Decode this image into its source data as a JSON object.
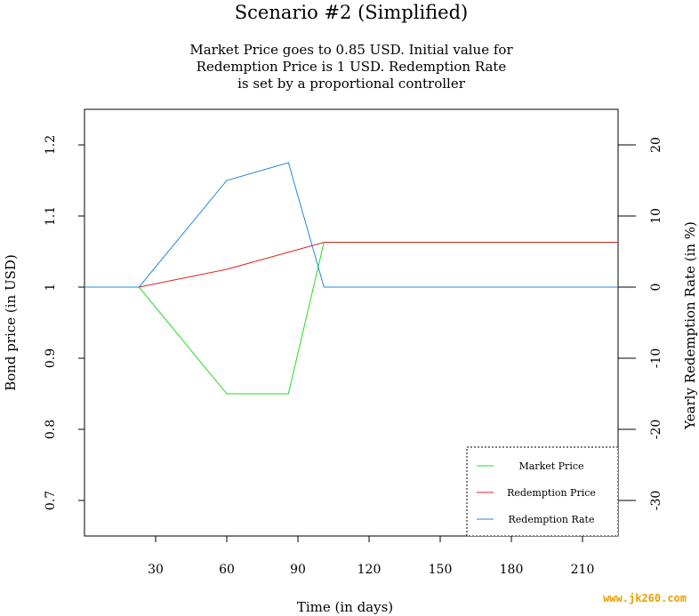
{
  "chart_data": {
    "type": "line",
    "title": "Scenario #2 (Simplified)",
    "subtitle_lines": [
      "Market Price goes to 0.85 USD. Initial value for",
      "Redemption Price is 1 USD. Redemption Rate",
      "is set by a proportional controller"
    ],
    "xlabel": "Time (in days)",
    "ylabel_left": "Bond price (in USD)",
    "ylabel_right": "Yearly Redemption Rate (in %)",
    "xlim": [
      0,
      225
    ],
    "ylim_left": [
      0.65,
      1.25
    ],
    "ylim_right": [
      -35,
      25
    ],
    "x_ticks": [
      30,
      60,
      90,
      120,
      150,
      180,
      210
    ],
    "y_ticks_left": [
      0.7,
      0.8,
      0.9,
      1,
      1.1,
      1.2
    ],
    "y_ticks_right": [
      -30,
      -20,
      -10,
      0,
      10,
      20
    ],
    "series": [
      {
        "name": "Market Price",
        "axis": "left",
        "color": "#22dd22",
        "x": [
          0,
          23,
          60,
          86,
          101,
          225
        ],
        "y": [
          1.0,
          1.0,
          0.85,
          0.85,
          1.063,
          1.063
        ]
      },
      {
        "name": "Redemption Price",
        "axis": "left",
        "color": "#dd2222",
        "x": [
          0,
          23,
          60,
          101,
          225
        ],
        "y": [
          1.0,
          1.0,
          1.025,
          1.063,
          1.063
        ]
      },
      {
        "name": "Redemption Rate",
        "axis": "right",
        "color": "#2288dd",
        "x": [
          0,
          23,
          60,
          86,
          101,
          225
        ],
        "y": [
          0,
          0,
          15,
          17.5,
          0,
          0
        ]
      }
    ],
    "legend_position": "bottom-right",
    "grid": false
  },
  "watermark": "www.jk260.com"
}
